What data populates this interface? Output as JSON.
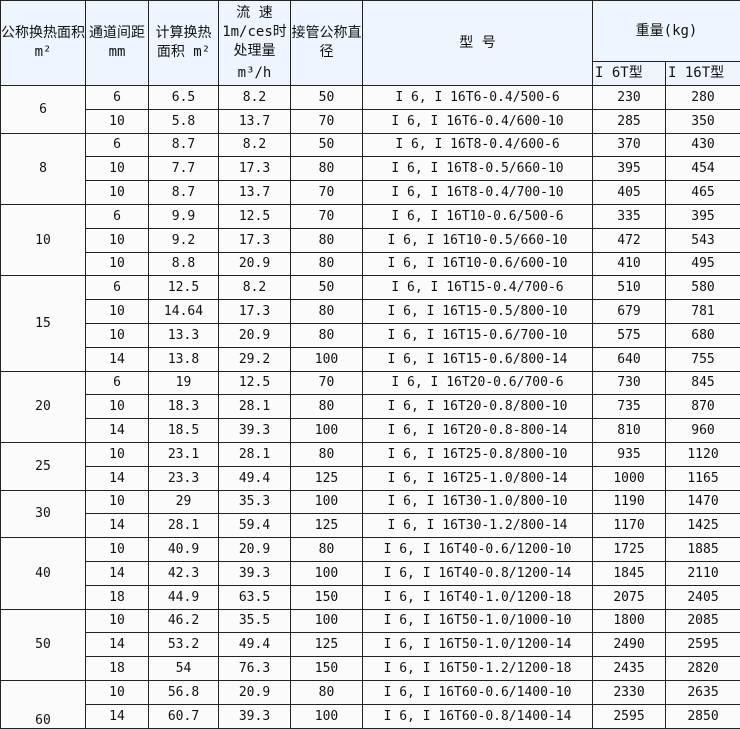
{
  "header": {
    "area_nominal": "公称换热面积m²",
    "channel_gap": "通道间距 mm",
    "area_calc": "计算换热面积 m²",
    "flow_line1": "流 速",
    "flow_line2": "1m/ces时",
    "flow_line3": "处理量",
    "flow_unit": "m³/h",
    "pipe_dn": "接管公称直径",
    "model": "型 号",
    "weight": "重量(kg)",
    "weight_6t": "I 6T型",
    "weight_16t": "I 16T型"
  },
  "groups": [
    {
      "area": "6",
      "rows": [
        [
          "6",
          "6.5",
          "8.2",
          "50",
          "I 6, I 16T6-0.4/500-6",
          "230",
          "280"
        ],
        [
          "10",
          "5.8",
          "13.7",
          "70",
          "I 6, I 16T6-0.4/600-10",
          "285",
          "350"
        ]
      ]
    },
    {
      "area": "8",
      "rows": [
        [
          "6",
          "8.7",
          "8.2",
          "50",
          "I 6, I 16T8-0.4/600-6",
          "370",
          "430"
        ],
        [
          "10",
          "7.7",
          "17.3",
          "80",
          "I 6, I 16T8-0.5/660-10",
          "395",
          "454"
        ],
        [
          "10",
          "8.7",
          "13.7",
          "70",
          "I 6, I 16T8-0.4/700-10",
          "405",
          "465"
        ]
      ]
    },
    {
      "area": "10",
      "rows": [
        [
          "6",
          "9.9",
          "12.5",
          "70",
          "I 6, I 16T10-0.6/500-6",
          "335",
          "395"
        ],
        [
          "10",
          "9.2",
          "17.3",
          "80",
          "I 6, I 16T10-0.5/660-10",
          "472",
          "543"
        ],
        [
          "10",
          "8.8",
          "20.9",
          "80",
          "I 6, I 16T10-0.6/600-10",
          "410",
          "495"
        ]
      ]
    },
    {
      "area": "15",
      "rows": [
        [
          "6",
          "12.5",
          "8.2",
          "50",
          "I 6, I 16T15-0.4/700-6",
          "510",
          "580"
        ],
        [
          "10",
          "14.64",
          "17.3",
          "80",
          "I 6, I 16T15-0.5/800-10",
          "679",
          "781"
        ],
        [
          "10",
          "13.3",
          "20.9",
          "80",
          "I 6, I 16T15-0.6/700-10",
          "575",
          "680"
        ],
        [
          "14",
          "13.8",
          "29.2",
          "100",
          "I 6, I 16T15-0.6/800-14",
          "640",
          "755"
        ]
      ]
    },
    {
      "area": "20",
      "rows": [
        [
          "6",
          "19",
          "12.5",
          "70",
          "I 6, I 16T20-0.6/700-6",
          "730",
          "845"
        ],
        [
          "10",
          "18.3",
          "28.1",
          "80",
          "I 6, I 16T20-0.8/800-10",
          "735",
          "870"
        ],
        [
          "14",
          "18.5",
          "39.3",
          "100",
          "I 6, I 16T20-0.8-800-14",
          "810",
          "960"
        ]
      ]
    },
    {
      "area": "25",
      "rows": [
        [
          "10",
          "23.1",
          "28.1",
          "80",
          "I 6, I 16T25-0.8/800-10",
          "935",
          "1120"
        ],
        [
          "14",
          "23.3",
          "49.4",
          "125",
          "I 6, I 16T25-1.0/800-14",
          "1000",
          "1165"
        ]
      ]
    },
    {
      "area": "30",
      "rows": [
        [
          "10",
          "29",
          "35.3",
          "100",
          "I 6, I 16T30-1.0/800-10",
          "1190",
          "1470"
        ],
        [
          "14",
          "28.1",
          "59.4",
          "125",
          "I 6, I 16T30-1.2/800-14",
          "1170",
          "1425"
        ]
      ]
    },
    {
      "area": "40",
      "rows": [
        [
          "10",
          "40.9",
          "20.9",
          "80",
          "I 6, I 16T40-0.6/1200-10",
          "1725",
          "1885"
        ],
        [
          "14",
          "42.3",
          "39.3",
          "100",
          "I 6, I 16T40-0.8/1200-14",
          "1845",
          "2110"
        ],
        [
          "18",
          "44.9",
          "63.5",
          "150",
          "I 6, I 16T40-1.0/1200-18",
          "2075",
          "2405"
        ]
      ]
    },
    {
      "area": "50",
      "rows": [
        [
          "10",
          "46.2",
          "35.5",
          "100",
          "I 6, I 16T50-1.0/1000-10",
          "1800",
          "2085"
        ],
        [
          "14",
          "53.2",
          "49.4",
          "125",
          "I 6, I 16T50-1.0/1200-14",
          "2490",
          "2595"
        ],
        [
          "18",
          "54",
          "76.3",
          "150",
          "I 6, I 16T50-1.2/1200-18",
          "2435",
          "2820"
        ]
      ]
    },
    {
      "area": "60",
      "rows": [
        [
          "10",
          "56.8",
          "20.9",
          "80",
          "I 6, I 16T60-0.6/1400-10",
          "2330",
          "2635"
        ],
        [
          "14",
          "60.7",
          "39.3",
          "100",
          "I 6, I 16T60-0.8/1400-14",
          "2595",
          "2850"
        ]
      ]
    }
  ]
}
